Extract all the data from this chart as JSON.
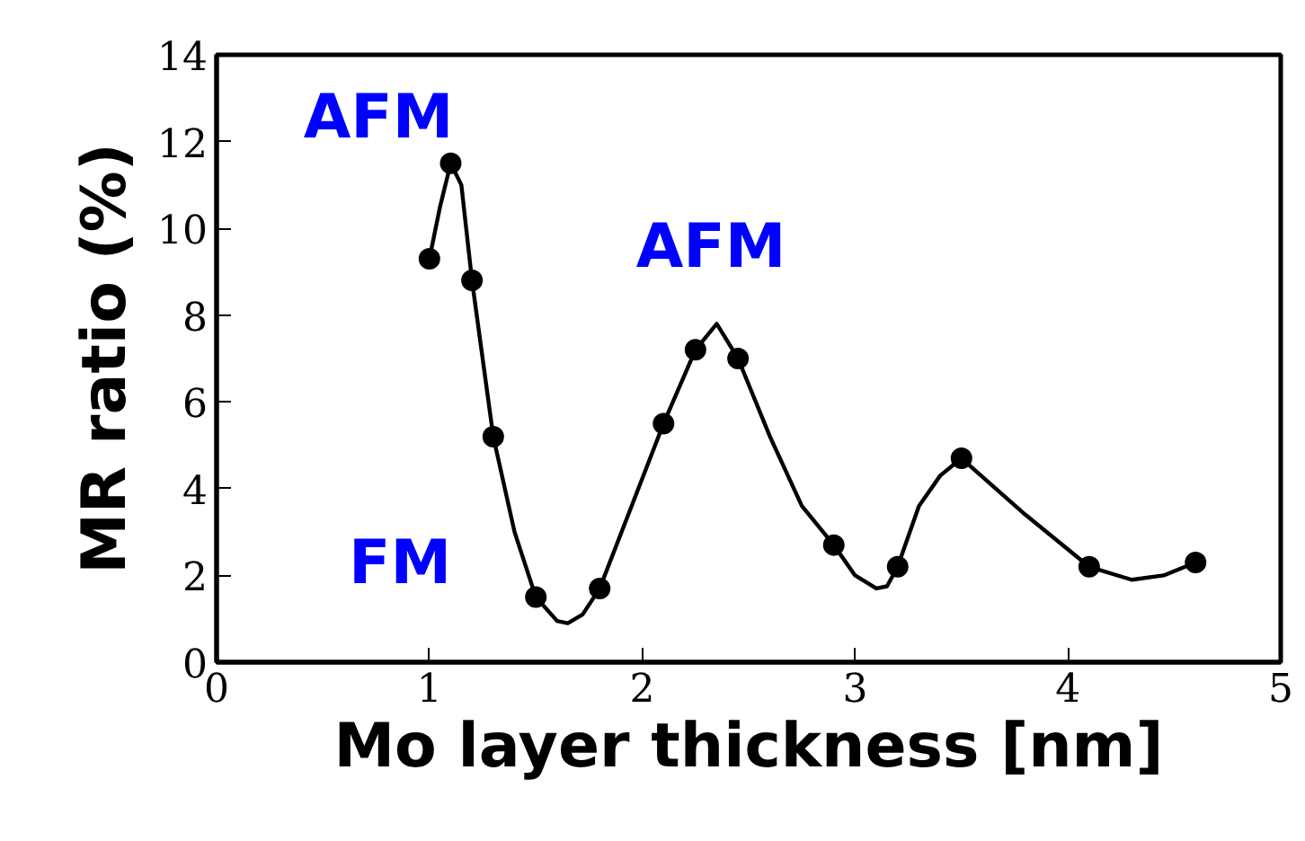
{
  "chart_data": {
    "type": "scatter",
    "xlabel": "Mo layer thickness [nm]",
    "ylabel": "MR ratio (%)",
    "xlim": [
      0,
      5
    ],
    "ylim": [
      0,
      14
    ],
    "xticks": [
      0,
      1,
      2,
      3,
      4,
      5
    ],
    "yticks": [
      0,
      2,
      4,
      6,
      8,
      10,
      12,
      14
    ],
    "grid": false,
    "series": [
      {
        "color": "#000000",
        "marker": "circle",
        "x": [
          1.0,
          1.1,
          1.2,
          1.3,
          1.5,
          1.8,
          2.1,
          2.25,
          2.45,
          2.9,
          3.2,
          3.5,
          4.1,
          4.6
        ],
        "values": [
          9.3,
          11.5,
          8.8,
          5.2,
          1.5,
          1.7,
          5.5,
          7.2,
          7.0,
          2.7,
          2.2,
          4.7,
          2.2,
          2.3
        ]
      },
      {
        "type": "line",
        "color": "#000000",
        "line_style": "solid",
        "x": [
          1.0,
          1.05,
          1.1,
          1.15,
          1.2,
          1.3,
          1.4,
          1.5,
          1.6,
          1.65,
          1.72,
          1.8,
          1.95,
          2.1,
          2.25,
          2.35,
          2.45,
          2.6,
          2.75,
          2.9,
          3.0,
          3.1,
          3.15,
          3.2,
          3.3,
          3.4,
          3.5,
          3.8,
          4.1,
          4.3,
          4.45,
          4.6
        ],
        "values": [
          9.3,
          10.5,
          11.5,
          11.0,
          8.8,
          5.2,
          3.0,
          1.5,
          0.95,
          0.9,
          1.1,
          1.7,
          3.6,
          5.5,
          7.2,
          7.8,
          7.0,
          5.2,
          3.6,
          2.7,
          2.0,
          1.7,
          1.75,
          2.2,
          3.6,
          4.3,
          4.7,
          3.4,
          2.2,
          1.9,
          2.0,
          2.3
        ]
      }
    ],
    "annotations": [
      "AFM",
      "AFM",
      "FM"
    ]
  }
}
